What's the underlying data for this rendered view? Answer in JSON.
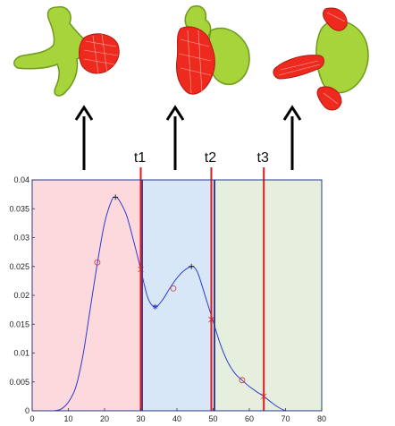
{
  "colors": {
    "region1": "#fcd9dc",
    "region2": "#d7e7f7",
    "region3": "#e6efdd",
    "curve": "#2b3cd6",
    "marker": "#d43030",
    "threshold": "#dd1c1c",
    "boundary": "#3a3f8f",
    "bone": "#a6d43a",
    "highlight": "#ee2a1e"
  },
  "icons": [
    "vertebra-icon",
    "vertebra-icon",
    "vertebra-icon",
    "up-arrow-icon"
  ],
  "chart_data": {
    "type": "line",
    "title": "",
    "xlabel": "",
    "ylabel": "",
    "xlim": [
      0,
      80
    ],
    "ylim": [
      0,
      0.04
    ],
    "x_ticks": [
      0,
      10,
      20,
      30,
      40,
      50,
      60,
      70,
      80
    ],
    "y_ticks": [
      0,
      0.005,
      0.01,
      0.015,
      0.02,
      0.025,
      0.03,
      0.035,
      0.04
    ],
    "grid": false,
    "regions": [
      {
        "x": [
          0,
          30
        ]
      },
      {
        "x": [
          30,
          50
        ]
      },
      {
        "x": [
          50,
          80
        ]
      }
    ],
    "boundaries": [
      30,
      50
    ],
    "thresholds": [
      {
        "label": "t1",
        "x": 30
      },
      {
        "label": "t2",
        "x": 49.5
      },
      {
        "label": "t3",
        "x": 64
      }
    ],
    "series": [
      {
        "x": [
          6,
          8,
          10,
          12,
          14,
          16,
          18,
          20,
          22,
          23,
          24,
          26,
          28,
          30,
          32,
          34,
          36,
          38,
          40,
          42,
          44,
          45,
          46,
          48,
          50,
          52,
          54,
          56,
          58,
          60,
          62,
          64,
          66,
          68,
          70
        ],
        "values": [
          0,
          0.0003,
          0.0015,
          0.004,
          0.0095,
          0.0175,
          0.0255,
          0.0325,
          0.0365,
          0.037,
          0.0365,
          0.034,
          0.0295,
          0.0245,
          0.0195,
          0.018,
          0.0192,
          0.0212,
          0.023,
          0.0243,
          0.025,
          0.0247,
          0.0235,
          0.0195,
          0.0155,
          0.0115,
          0.0085,
          0.0065,
          0.0053,
          0.0042,
          0.0033,
          0.0025,
          0.0015,
          0.0006,
          0
        ]
      }
    ],
    "markers": [
      {
        "shape": "plus",
        "x": 23,
        "y": 0.037
      },
      {
        "shape": "circle",
        "x": 18,
        "y": 0.0257
      },
      {
        "shape": "cross",
        "x": 30,
        "y": 0.0245
      },
      {
        "shape": "star",
        "x": 34,
        "y": 0.018
      },
      {
        "shape": "circle",
        "x": 39,
        "y": 0.0212
      },
      {
        "shape": "plus",
        "x": 44,
        "y": 0.025
      },
      {
        "shape": "cross",
        "x": 49.5,
        "y": 0.0158
      },
      {
        "shape": "circle",
        "x": 58,
        "y": 0.0053
      },
      {
        "shape": "cross",
        "x": 64,
        "y": 0.0025
      }
    ]
  }
}
